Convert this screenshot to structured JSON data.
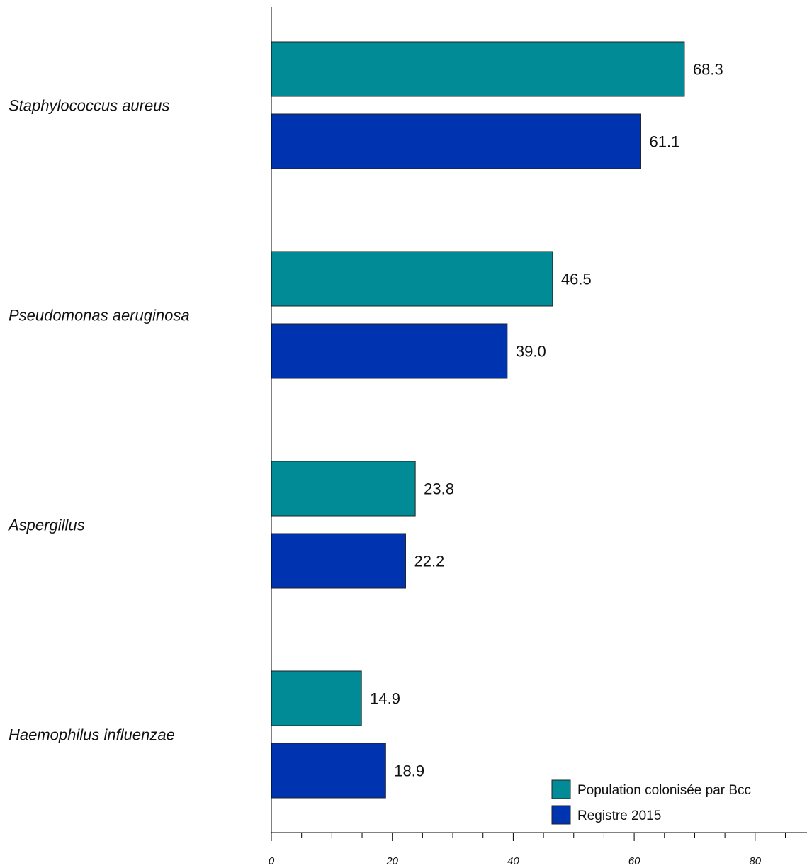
{
  "chart_data": {
    "type": "bar",
    "orientation": "horizontal",
    "categories": [
      "Staphylococcus aureus",
      "Pseudomonas aeruginosa",
      "Aspergillus",
      "Haemophilus influenzae"
    ],
    "series": [
      {
        "name": "Population colonisée par Bcc",
        "color": "#008B96",
        "values": [
          68.3,
          46.5,
          23.8,
          14.9
        ]
      },
      {
        "name": "Registre 2015",
        "color": "#0033B0",
        "values": [
          61.1,
          39.0,
          22.2,
          18.9
        ]
      }
    ],
    "value_labels": [
      [
        "68.3",
        "46.5",
        "23.8",
        "14.9"
      ],
      [
        "61.1",
        "39.0",
        "22.2",
        "18.9"
      ]
    ],
    "xlim": [
      0,
      89
    ],
    "major_ticks": [
      0,
      20,
      40,
      60,
      80
    ],
    "tick_labels": [
      "0",
      "20",
      "40",
      "60",
      "80"
    ],
    "minor_tick_step": 5,
    "grid": false,
    "legend_position": "bottom-right",
    "title": "",
    "xlabel": "",
    "ylabel": ""
  }
}
